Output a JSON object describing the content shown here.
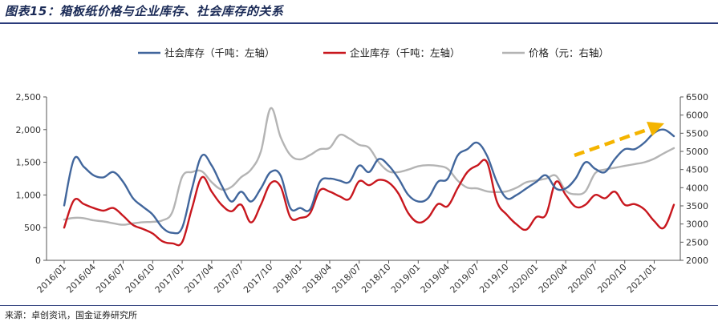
{
  "figure": {
    "title": "图表15：箱板纸价格与企业库存、社会库存的关系",
    "source": "来源：卓创资讯，国金证券研究所"
  },
  "colors": {
    "social": "#41669c",
    "enterprise": "#c8171e",
    "price": "#b4b4b4",
    "arrow": "#f4b400",
    "rule": "#2a3a7a"
  },
  "chart_data": {
    "type": "line",
    "x": [
      "2016/01",
      "2016/02",
      "2016/03",
      "2016/04",
      "2016/05",
      "2016/06",
      "2016/07",
      "2016/08",
      "2016/09",
      "2016/10",
      "2016/11",
      "2016/12",
      "2017/01",
      "2017/02",
      "2017/03",
      "2017/04",
      "2017/05",
      "2017/06",
      "2017/07",
      "2017/08",
      "2017/09",
      "2017/10",
      "2017/11",
      "2017/12",
      "2018/01",
      "2018/02",
      "2018/03",
      "2018/04",
      "2018/05",
      "2018/06",
      "2018/07",
      "2018/08",
      "2018/09",
      "2018/10",
      "2018/11",
      "2018/12",
      "2019/01",
      "2019/02",
      "2019/03",
      "2019/04",
      "2019/05",
      "2019/06",
      "2019/07",
      "2019/08",
      "2019/09",
      "2019/10",
      "2019/11",
      "2019/12",
      "2020/01",
      "2020/02",
      "2020/03",
      "2020/04",
      "2020/05",
      "2020/06",
      "2020/07",
      "2020/08",
      "2020/09",
      "2020/10",
      "2020/11",
      "2020/12",
      "2021/01",
      "2021/02",
      "2021/03"
    ],
    "x_tick_labels": [
      "2016/01",
      "2016/04",
      "2016/07",
      "2016/10",
      "2017/01",
      "2017/04",
      "2017/07",
      "2017/10",
      "2018/01",
      "2018/04",
      "2018/07",
      "2018/10",
      "2019/01",
      "2019/04",
      "2019/07",
      "2019/10",
      "2020/01",
      "2020/04",
      "2020/07",
      "2020/10",
      "2021/01"
    ],
    "y_left": {
      "min": 0,
      "max": 2500,
      "ticks": [
        "0",
        "500",
        "1,000",
        "1,500",
        "2,000",
        "2,500"
      ]
    },
    "y_right": {
      "min": 2000,
      "max": 6500,
      "ticks": [
        "2000",
        "2500",
        "3000",
        "3500",
        "4000",
        "4500",
        "5000",
        "5500",
        "6000",
        "6500"
      ]
    },
    "legend_position": "top-center",
    "grid": false,
    "series": [
      {
        "name": "社会库存（千吨：左轴）",
        "axis": "left",
        "color_key": "social",
        "values": [
          840,
          1550,
          1430,
          1300,
          1270,
          1350,
          1200,
          950,
          820,
          700,
          500,
          420,
          500,
          1100,
          1600,
          1450,
          1150,
          900,
          1050,
          900,
          1100,
          1350,
          1300,
          800,
          800,
          780,
          1200,
          1250,
          1220,
          1200,
          1450,
          1350,
          1550,
          1450,
          1250,
          1000,
          900,
          950,
          1200,
          1250,
          1600,
          1700,
          1800,
          1600,
          1200,
          950,
          1000,
          1100,
          1200,
          1300,
          1100,
          1100,
          1250,
          1500,
          1400,
          1350,
          1550,
          1700,
          1700,
          1800,
          1950,
          2000,
          1900
        ]
      },
      {
        "name": "企业库存（千吨：左轴）",
        "axis": "left",
        "color_key": "enterprise",
        "values": [
          500,
          920,
          860,
          800,
          760,
          800,
          680,
          540,
          480,
          410,
          290,
          260,
          280,
          800,
          1270,
          1050,
          850,
          750,
          850,
          580,
          850,
          1180,
          1130,
          660,
          650,
          720,
          1070,
          1050,
          980,
          940,
          1210,
          1150,
          1230,
          1190,
          1020,
          720,
          580,
          650,
          860,
          830,
          1100,
          1350,
          1450,
          1500,
          900,
          700,
          550,
          470,
          660,
          700,
          1200,
          1000,
          820,
          850,
          1000,
          950,
          1050,
          850,
          860,
          780,
          600,
          500,
          850
        ]
      },
      {
        "name": "价格（元：右轴）",
        "axis": "right",
        "color_key": "price",
        "values": [
          3120,
          3170,
          3160,
          3100,
          3070,
          3020,
          2980,
          3020,
          3050,
          3060,
          3100,
          3330,
          4300,
          4430,
          4450,
          4150,
          3950,
          4020,
          4290,
          4500,
          5000,
          6190,
          5400,
          4900,
          4780,
          4900,
          5060,
          5100,
          5450,
          5350,
          5180,
          5100,
          4700,
          4450,
          4430,
          4500,
          4590,
          4620,
          4600,
          4520,
          4200,
          4000,
          3980,
          3900,
          3880,
          3900,
          4000,
          4150,
          4200,
          4250,
          4330,
          3920,
          3820,
          3900,
          4400,
          4500,
          4550,
          4600,
          4650,
          4700,
          4800,
          4950,
          5090
        ]
      }
    ]
  }
}
